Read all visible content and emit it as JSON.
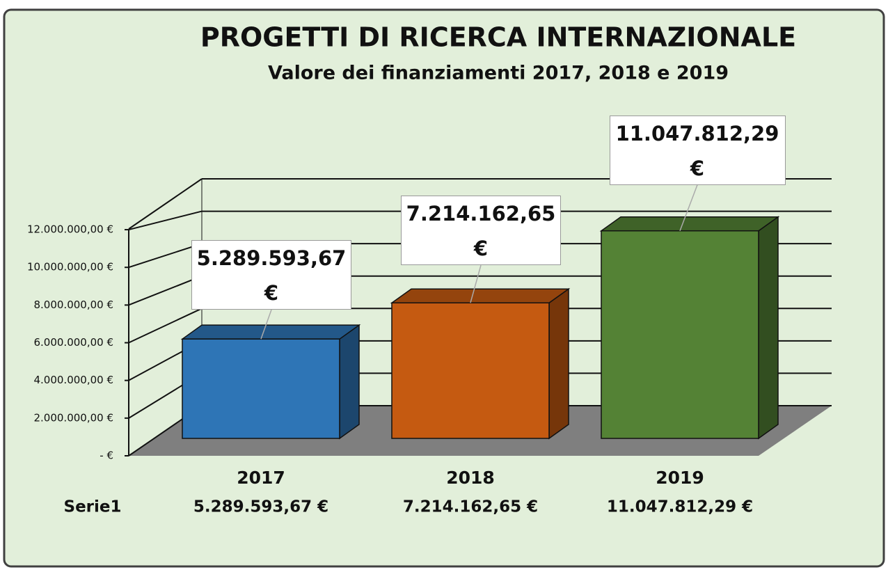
{
  "chart_data": {
    "type": "bar3d",
    "title": "PROGETTI DI RICERCA INTERNAZIONALE",
    "subtitle": "Valore dei finanziamenti 2017, 2018 e 2019",
    "categories": [
      "2017",
      "2018",
      "2019"
    ],
    "values": [
      5289593.67,
      7214162.65,
      11047812.29
    ],
    "value_labels": [
      "5.289.593,67 €",
      "7.214.162,65 €",
      "11.047.812,29 €"
    ],
    "colors": [
      "#2e75b6",
      "#c55a11",
      "#548235"
    ],
    "ylim": [
      0,
      14000000
    ],
    "yticks": [
      {
        "value": 0,
        "label": "- €"
      },
      {
        "value": 2000000,
        "label": "2.000.000,00 €"
      },
      {
        "value": 4000000,
        "label": "4.000.000,00 €"
      },
      {
        "value": 6000000,
        "label": "6.000.000,00 €"
      },
      {
        "value": 8000000,
        "label": "8.000.000,00 €"
      },
      {
        "value": 10000000,
        "label": "10.000.000,00 €"
      },
      {
        "value": 12000000,
        "label": "12.000.000,00 €"
      }
    ],
    "grid": true,
    "data_table": {
      "series_name": "Serie1",
      "labels": [
        "5.289.593,67 €",
        "7.214.162,65 €",
        "11.047.812,29 €"
      ]
    }
  }
}
